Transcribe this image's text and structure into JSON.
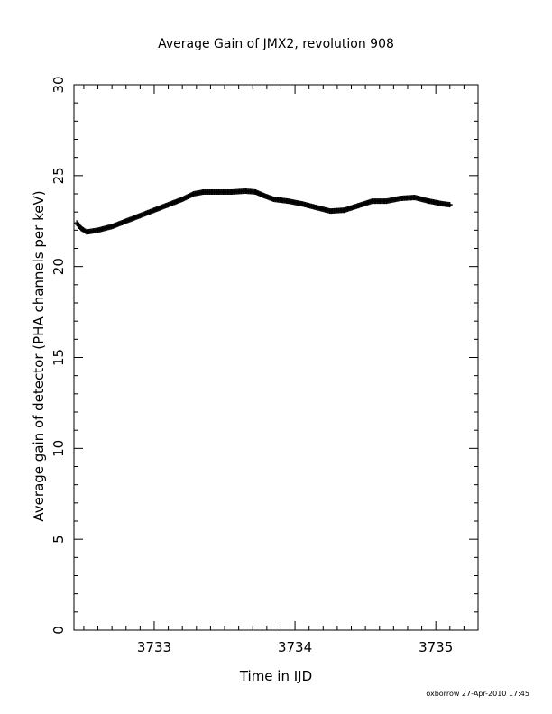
{
  "chart_data": {
    "type": "scatter",
    "title": "Average Gain of JMX2, revolution 908",
    "xlabel": "Time in IJD",
    "ylabel": "Average gain of detector (PHA channels per keV)",
    "xlim": [
      3732.43,
      3735.3
    ],
    "ylim": [
      0,
      30
    ],
    "xticks": [
      3733,
      3734,
      3735
    ],
    "yticks": [
      0,
      5,
      10,
      15,
      20,
      25,
      30
    ],
    "xtick_labels": [
      "3733",
      "3734",
      "3735"
    ],
    "ytick_labels": [
      "0",
      "5",
      "10",
      "15",
      "20",
      "25",
      "30"
    ],
    "marker": "+",
    "color": "#000000",
    "grid": false,
    "series": [
      {
        "x": [
          3732.45,
          3732.48,
          3732.52,
          3732.6,
          3732.7,
          3732.8,
          3732.9,
          3733.0,
          3733.1,
          3733.2,
          3733.28,
          3733.35,
          3733.45,
          3733.55,
          3733.65,
          3733.72,
          3733.78,
          3733.85,
          3733.95,
          3734.05,
          3734.15,
          3734.25,
          3734.35,
          3734.45,
          3734.55,
          3734.65,
          3734.75,
          3734.85,
          3734.95,
          3735.05,
          3735.1
        ],
        "y": [
          22.4,
          22.1,
          21.9,
          22.0,
          22.2,
          22.5,
          22.8,
          23.1,
          23.4,
          23.7,
          24.0,
          24.1,
          24.1,
          24.1,
          24.15,
          24.1,
          23.9,
          23.7,
          23.6,
          23.45,
          23.25,
          23.05,
          23.1,
          23.35,
          23.6,
          23.6,
          23.75,
          23.8,
          23.6,
          23.45,
          23.4
        ]
      }
    ]
  },
  "footer": "oxborrow 27-Apr-2010 17:45"
}
